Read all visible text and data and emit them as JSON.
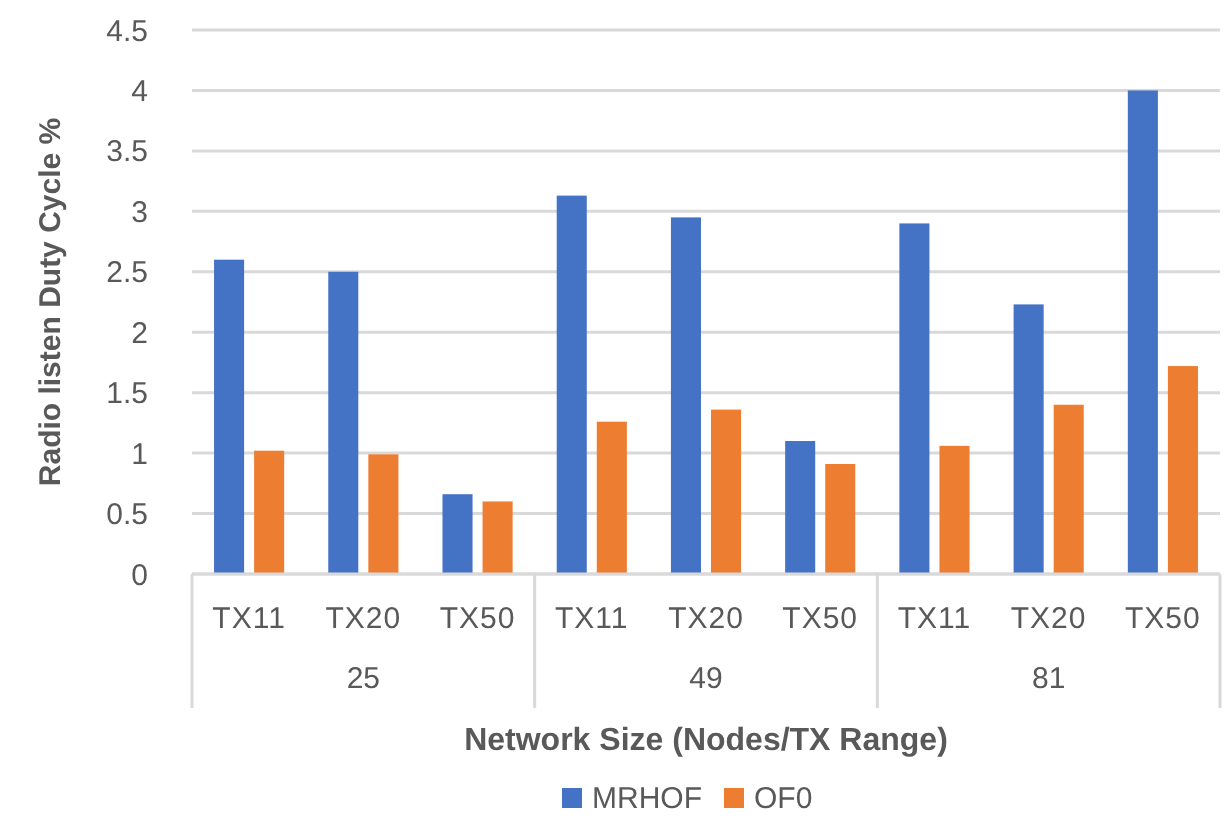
{
  "chart_data": {
    "type": "bar",
    "xlabel": "Network Size (Nodes/TX Range)",
    "ylabel": "Radio listen Duty Cycle %",
    "categories": [
      "TX11",
      "TX20",
      "TX50",
      "TX11",
      "TX20",
      "TX50",
      "TX11",
      "TX20",
      "TX50"
    ],
    "annotations": [
      "25",
      "49",
      "81"
    ],
    "series": [
      {
        "name": "MRHOF",
        "color": "#4472c4",
        "values": [
          2.6,
          2.5,
          0.66,
          3.13,
          2.95,
          1.1,
          2.9,
          2.23,
          4.0
        ]
      },
      {
        "name": "OF0",
        "color": "#ed7d31",
        "values": [
          1.02,
          0.99,
          0.6,
          1.26,
          1.36,
          0.91,
          1.06,
          1.4,
          1.72
        ]
      }
    ],
    "ylim": [
      0,
      4.5
    ],
    "yticks": [
      0,
      0.5,
      1,
      1.5,
      2,
      2.5,
      3,
      3.5,
      4,
      4.5
    ],
    "grid": "y",
    "legend": "bottom"
  }
}
